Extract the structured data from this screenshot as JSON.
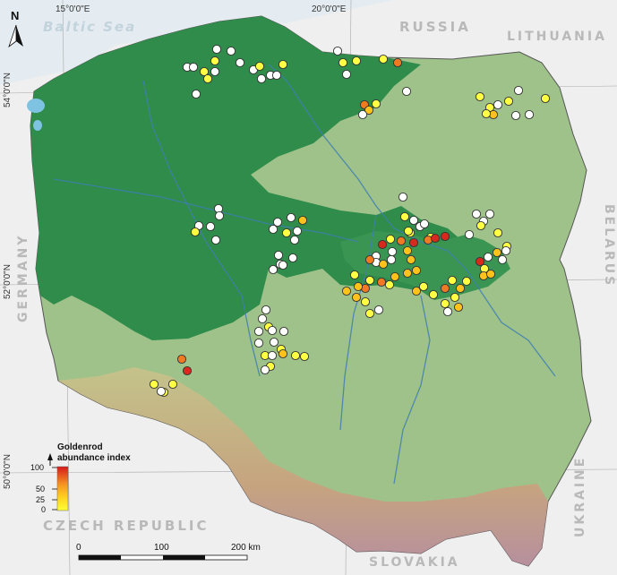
{
  "map": {
    "north_label": "N",
    "longitude_labels": [
      "15°0'0\"E",
      "20°0'0\"E"
    ],
    "latitude_labels": [
      "54°0'0\"N",
      "52°0'0\"N",
      "50°0'0\"N"
    ],
    "sea_label": "Baltic Sea",
    "country_labels": {
      "russia": "RUSSIA",
      "lithuania": "LITHUANIA",
      "belarus": "BELARUS",
      "germany": "GERMANY",
      "czech": "CZECH REPUBLIC",
      "slovakia": "SLOVAKIA",
      "ukraine": "UKRAINE"
    },
    "legend": {
      "title_line1": "Goldenrod",
      "title_line2": "abundance index",
      "ticks": [
        "100",
        "50",
        "25",
        "0"
      ],
      "range": [
        0,
        100
      ]
    },
    "scale_bar": {
      "labels": [
        "0",
        "100",
        "200 km"
      ]
    },
    "colors": {
      "lowland": "#2e8b48",
      "upland": "#a7c58c",
      "mountain": "#c9a27a",
      "sea": "#e6eef3",
      "high_abundance": "#d7191c",
      "low_abundance": "#ffff33",
      "zero_abundance": "#ffffff"
    }
  }
}
